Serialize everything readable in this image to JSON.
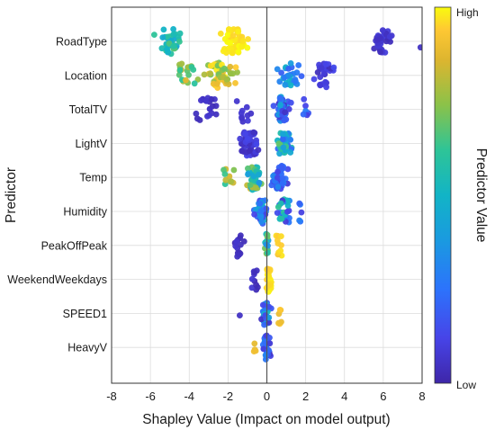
{
  "chart_data": {
    "type": "scatter",
    "subtype": "beeswarm",
    "xlabel": "Shapley Value (Impact on model output)",
    "ylabel": "Predictor",
    "xlim": [
      -8,
      8
    ],
    "xticks": [
      -8,
      -6,
      -4,
      -2,
      0,
      2,
      4,
      6,
      8
    ],
    "grid": true,
    "zero_line": true,
    "colorbar": {
      "title": "Predictor Value",
      "high_label": "High",
      "low_label": "Low",
      "colormap": "parula",
      "low_color": "#3e26a8",
      "high_color": "#f9fb0e"
    },
    "categories": [
      "RoadType",
      "Location",
      "TotalTV",
      "LightV",
      "Temp",
      "Humidity",
      "PeakOffPeak",
      "WeekendWeekdays",
      "SPEED1",
      "HeavyV"
    ],
    "series": [
      {
        "predictor": "RoadType",
        "groups": [
          {
            "center": -5.0,
            "spread": 1.1,
            "count": 38,
            "value": 0.55,
            "vspread": 0.12
          },
          {
            "center": -1.7,
            "spread": 1.1,
            "count": 60,
            "value": 0.98,
            "vspread": 0.03
          },
          {
            "center": 5.9,
            "spread": 0.7,
            "count": 34,
            "value": 0.06,
            "vspread": 0.04
          },
          {
            "center": 7.9,
            "spread": 0.05,
            "count": 1,
            "value": 0.05,
            "vspread": 0.0
          }
        ]
      },
      {
        "predictor": "Location",
        "groups": [
          {
            "center": -4.2,
            "spread": 0.9,
            "count": 20,
            "value": 0.75,
            "vspread": 0.15
          },
          {
            "center": -2.4,
            "spread": 1.2,
            "count": 55,
            "value": 0.85,
            "vspread": 0.15
          },
          {
            "center": 1.2,
            "spread": 0.8,
            "count": 28,
            "value": 0.35,
            "vspread": 0.18
          },
          {
            "center": 3.0,
            "spread": 0.7,
            "count": 26,
            "value": 0.08,
            "vspread": 0.06
          }
        ]
      },
      {
        "predictor": "TotalTV",
        "groups": [
          {
            "center": -3.2,
            "spread": 1.0,
            "count": 22,
            "value": 0.05,
            "vspread": 0.03
          },
          {
            "center": -1.2,
            "spread": 0.6,
            "count": 10,
            "value": 0.07,
            "vspread": 0.03
          },
          {
            "center": 0.8,
            "spread": 0.55,
            "count": 52,
            "value": 0.25,
            "vspread": 0.2
          },
          {
            "center": 2.0,
            "spread": 0.3,
            "count": 6,
            "value": 0.2,
            "vspread": 0.1
          }
        ]
      },
      {
        "predictor": "LightV",
        "groups": [
          {
            "center": -0.9,
            "spread": 0.7,
            "count": 60,
            "value": 0.08,
            "vspread": 0.05
          },
          {
            "center": 0.9,
            "spread": 0.6,
            "count": 38,
            "value": 0.45,
            "vspread": 0.25
          }
        ]
      },
      {
        "predictor": "Temp",
        "groups": [
          {
            "center": -2.0,
            "spread": 0.5,
            "count": 10,
            "value": 0.75,
            "vspread": 0.15
          },
          {
            "center": -0.7,
            "spread": 0.6,
            "count": 55,
            "value": 0.6,
            "vspread": 0.25
          },
          {
            "center": 0.6,
            "spread": 0.6,
            "count": 40,
            "value": 0.2,
            "vspread": 0.12
          }
        ]
      },
      {
        "predictor": "Humidity",
        "groups": [
          {
            "center": -0.3,
            "spread": 0.5,
            "count": 40,
            "value": 0.3,
            "vspread": 0.2
          },
          {
            "center": 0.9,
            "spread": 0.6,
            "count": 28,
            "value": 0.35,
            "vspread": 0.28
          },
          {
            "center": 1.7,
            "spread": 0.2,
            "count": 5,
            "value": 0.2,
            "vspread": 0.1
          }
        ]
      },
      {
        "predictor": "PeakOffPeak",
        "groups": [
          {
            "center": -1.4,
            "spread": 0.5,
            "count": 14,
            "value": 0.05,
            "vspread": 0.03
          },
          {
            "center": 0.0,
            "spread": 0.15,
            "count": 14,
            "value": 0.45,
            "vspread": 0.3
          },
          {
            "center": 0.6,
            "spread": 0.3,
            "count": 10,
            "value": 0.96,
            "vspread": 0.04
          }
        ]
      },
      {
        "predictor": "WeekendWeekdays",
        "groups": [
          {
            "center": -0.6,
            "spread": 0.3,
            "count": 10,
            "value": 0.05,
            "vspread": 0.03
          },
          {
            "center": 0.1,
            "spread": 0.2,
            "count": 34,
            "value": 0.97,
            "vspread": 0.03
          }
        ]
      },
      {
        "predictor": "SPEED1",
        "groups": [
          {
            "center": -0.05,
            "spread": 0.35,
            "count": 40,
            "value": 0.3,
            "vspread": 0.25
          },
          {
            "center": 0.7,
            "spread": 0.2,
            "count": 6,
            "value": 0.92,
            "vspread": 0.06
          },
          {
            "center": -1.4,
            "spread": 0.05,
            "count": 1,
            "value": 0.05,
            "vspread": 0.0
          }
        ]
      },
      {
        "predictor": "HeavyV",
        "groups": [
          {
            "center": 0.0,
            "spread": 0.25,
            "count": 36,
            "value": 0.2,
            "vspread": 0.15
          },
          {
            "center": -0.6,
            "spread": 0.15,
            "count": 4,
            "value": 0.85,
            "vspread": 0.1
          }
        ]
      }
    ]
  }
}
